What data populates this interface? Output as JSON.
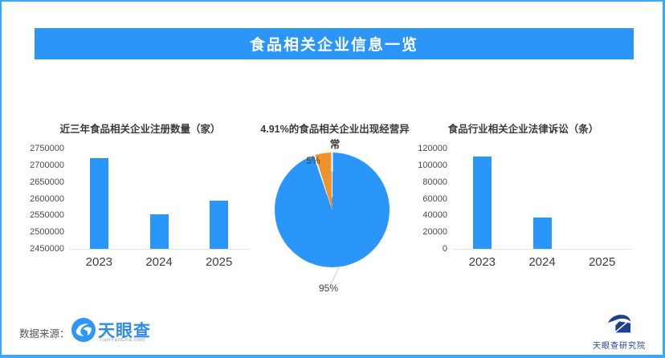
{
  "page": {
    "border_color": "#3BA7FD",
    "background": "#FFFFFF"
  },
  "header": {
    "title": "食品相关企业信息一览",
    "background": "#2B96F8",
    "text_color": "#FFFFFF"
  },
  "chart_data": [
    {
      "type": "bar",
      "title": "近三年食品相关企业注册数量（家）",
      "categories": [
        "2023",
        "2024",
        "2025"
      ],
      "values": [
        2720000,
        2554000,
        2595000
      ],
      "ylim": [
        2450000,
        2750000
      ],
      "ytick_step": 50000,
      "yticks": [
        2450000,
        2500000,
        2550000,
        2600000,
        2650000,
        2700000,
        2750000
      ],
      "bar_color": "#2B96FA",
      "grid": false,
      "legend_position": "none"
    },
    {
      "type": "pie",
      "title": "4.91%的食品相关企业出现经营异常",
      "slices": [
        {
          "label": "95%",
          "value": 95,
          "color": "#2B96FA"
        },
        {
          "label": "5%",
          "value": 5,
          "color": "#F0922E"
        }
      ],
      "highlight_percent_text": "4.91%",
      "legend_position": "none"
    },
    {
      "type": "bar",
      "title": "食品行业相关企业法律诉讼（条）",
      "categories": [
        "2023",
        "2024",
        "2025"
      ],
      "values": [
        110000,
        37000,
        0
      ],
      "ylim": [
        0,
        120000
      ],
      "ytick_step": 20000,
      "yticks": [
        0,
        20000,
        40000,
        60000,
        80000,
        100000,
        120000
      ],
      "bar_color": "#2B96FA",
      "grid": false,
      "legend_position": "none"
    }
  ],
  "footer": {
    "source_label": "数据来源：",
    "logo": {
      "name": "天眼查",
      "subtext": "TianYanCha.com",
      "color": "#2F8BEE"
    },
    "institute": {
      "name": "天眼查研究院",
      "color": "#1D4091"
    }
  }
}
